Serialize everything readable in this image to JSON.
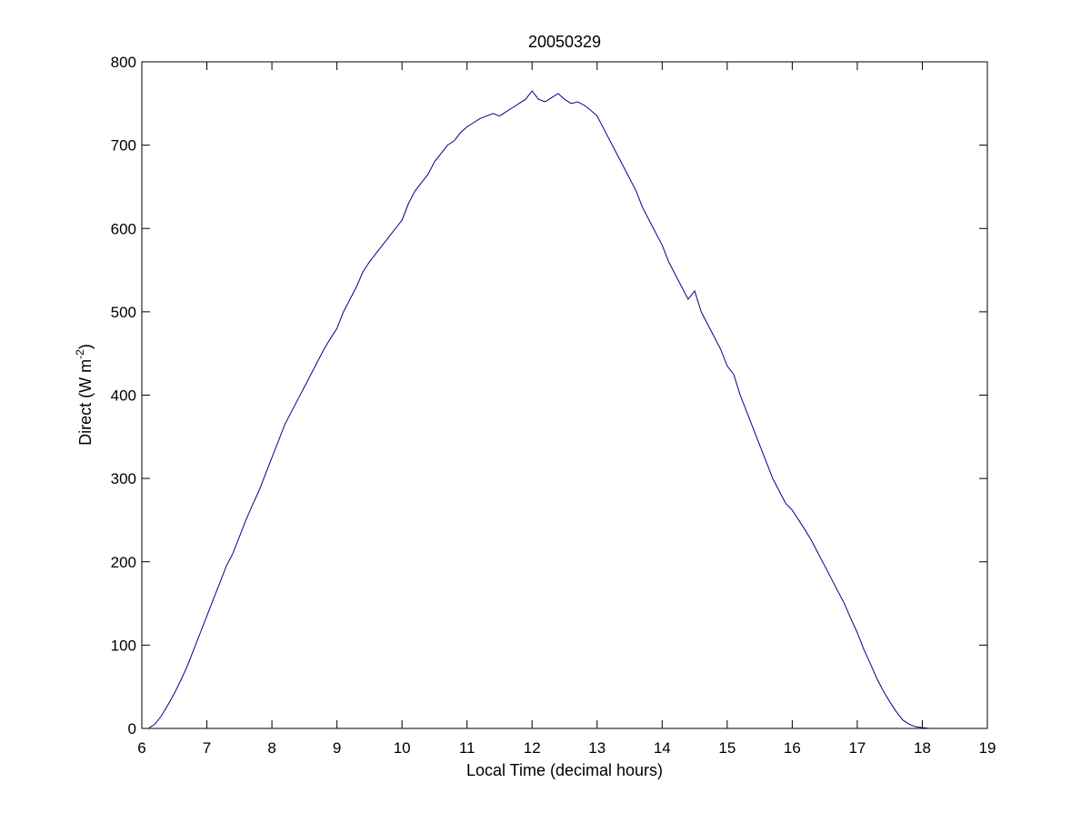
{
  "chart_data": {
    "type": "line",
    "title": "20050329",
    "xlabel": "Local Time (decimal hours)",
    "ylabel": {
      "prefix": "Direct (W m",
      "superscript": "-2",
      "suffix": ")"
    },
    "xlim": [
      6,
      19
    ],
    "ylim": [
      0,
      800
    ],
    "xticks": [
      "6",
      "7",
      "8",
      "9",
      "10",
      "11",
      "12",
      "13",
      "14",
      "15",
      "16",
      "17",
      "18",
      "19"
    ],
    "yticks": [
      "0",
      "100",
      "200",
      "300",
      "400",
      "500",
      "600",
      "700",
      "800"
    ],
    "grid": false,
    "legend": "none",
    "line_color": "#00008b",
    "series": [
      {
        "x": [
          6.1,
          6.2,
          6.3,
          6.4,
          6.5,
          6.6,
          6.7,
          6.8,
          6.9,
          7.0,
          7.1,
          7.2,
          7.3,
          7.4,
          7.5,
          7.6,
          7.7,
          7.8,
          7.9,
          8.0,
          8.1,
          8.2,
          8.3,
          8.4,
          8.5,
          8.6,
          8.7,
          8.8,
          8.9,
          9.0,
          9.1,
          9.2,
          9.3,
          9.4,
          9.5,
          9.6,
          9.7,
          9.8,
          9.9,
          10.0,
          10.1,
          10.2,
          10.3,
          10.4,
          10.5,
          10.6,
          10.7,
          10.8,
          10.9,
          11.0,
          11.1,
          11.2,
          11.3,
          11.4,
          11.5,
          11.6,
          11.7,
          11.8,
          11.9,
          12.0,
          12.1,
          12.2,
          12.3,
          12.4,
          12.5,
          12.6,
          12.7,
          12.8,
          12.9,
          13.0,
          13.1,
          13.2,
          13.3,
          13.4,
          13.5,
          13.6,
          13.7,
          13.8,
          13.9,
          14.0,
          14.1,
          14.2,
          14.3,
          14.4,
          14.5,
          14.6,
          14.7,
          14.8,
          14.9,
          15.0,
          15.1,
          15.2,
          15.3,
          15.4,
          15.5,
          15.6,
          15.7,
          15.8,
          15.9,
          16.0,
          16.1,
          16.2,
          16.3,
          16.4,
          16.5,
          16.6,
          16.7,
          16.8,
          16.9,
          17.0,
          17.1,
          17.2,
          17.3,
          17.4,
          17.5,
          17.6,
          17.7,
          17.8,
          17.9,
          18.0,
          18.1,
          18.2,
          18.3,
          18.4
        ],
        "y": [
          0,
          5,
          15,
          28,
          42,
          58,
          75,
          95,
          115,
          135,
          155,
          175,
          195,
          210,
          230,
          250,
          268,
          285,
          305,
          325,
          345,
          365,
          380,
          395,
          410,
          425,
          440,
          455,
          468,
          480,
          500,
          515,
          530,
          548,
          560,
          570,
          580,
          590,
          600,
          610,
          630,
          645,
          655,
          665,
          680,
          690,
          700,
          705,
          715,
          722,
          727,
          732,
          735,
          738,
          735,
          740,
          745,
          750,
          755,
          765,
          755,
          752,
          757,
          762,
          755,
          750,
          752,
          748,
          742,
          735,
          720,
          705,
          690,
          675,
          660,
          645,
          625,
          610,
          595,
          580,
          560,
          545,
          530,
          515,
          525,
          500,
          485,
          470,
          455,
          435,
          425,
          400,
          380,
          360,
          340,
          320,
          300,
          285,
          270,
          262,
          250,
          238,
          225,
          210,
          195,
          180,
          165,
          150,
          132,
          115,
          95,
          78,
          60,
          45,
          32,
          20,
          10,
          5,
          2,
          1,
          0,
          0,
          0,
          0
        ]
      }
    ]
  }
}
